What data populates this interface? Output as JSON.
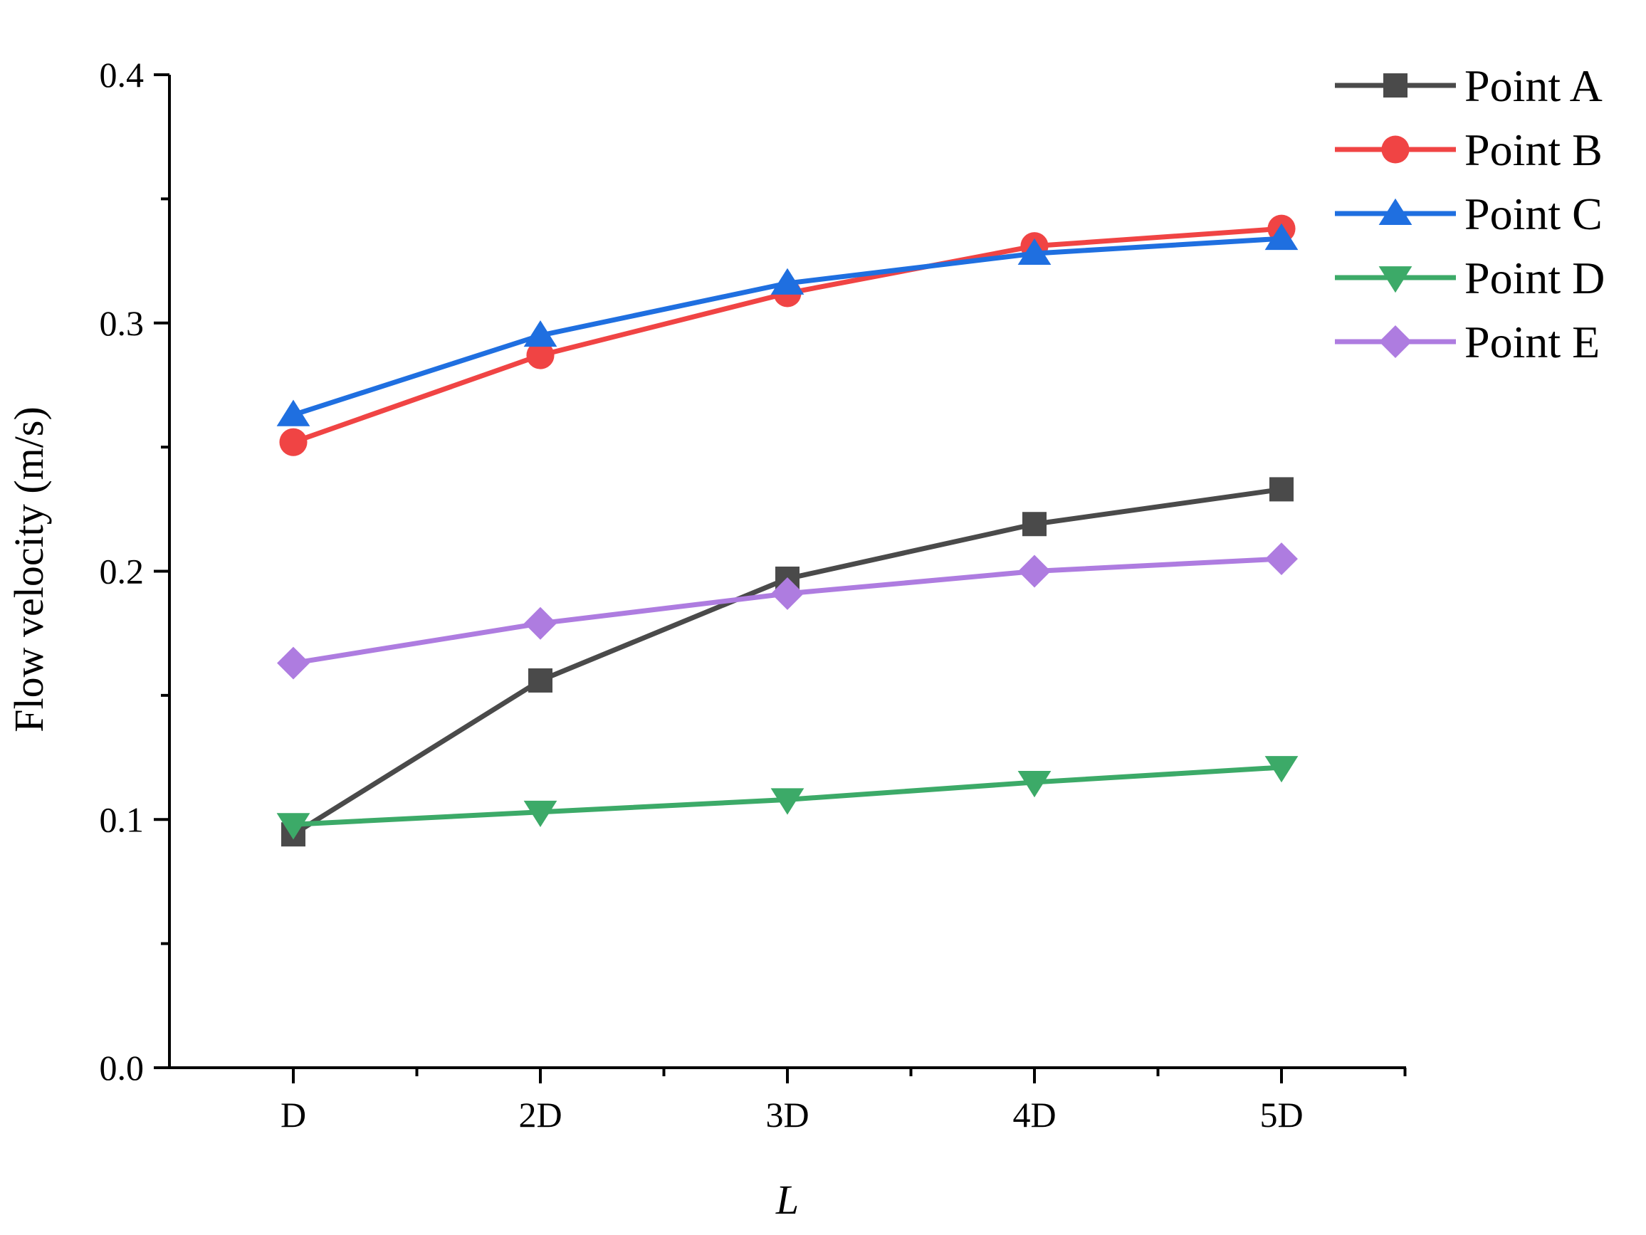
{
  "chart_data": {
    "type": "line",
    "xlabel": "L",
    "ylabel": "Flow velocity (m/s)",
    "categories": [
      "D",
      "2D",
      "3D",
      "4D",
      "5D"
    ],
    "ylim": [
      0.0,
      0.4
    ],
    "yticks": [
      "0.0",
      "0.1",
      "0.2",
      "0.3",
      "0.4"
    ],
    "grid": false,
    "legend_position": "top-right",
    "series": [
      {
        "name": "Point A",
        "color": "#4a4a4a",
        "marker": "square",
        "values": [
          0.094,
          0.156,
          0.197,
          0.219,
          0.233
        ]
      },
      {
        "name": "Point B",
        "color": "#f04444",
        "marker": "circle",
        "values": [
          0.252,
          0.287,
          0.312,
          0.331,
          0.338
        ]
      },
      {
        "name": "Point C",
        "color": "#1f6fe0",
        "marker": "triangle-up",
        "values": [
          0.263,
          0.295,
          0.316,
          0.328,
          0.334
        ]
      },
      {
        "name": "Point D",
        "color": "#3caa68",
        "marker": "triangle-down",
        "values": [
          0.098,
          0.103,
          0.108,
          0.115,
          0.121
        ]
      },
      {
        "name": "Point E",
        "color": "#ae7ce0",
        "marker": "diamond",
        "values": [
          0.163,
          0.179,
          0.191,
          0.2,
          0.205
        ]
      }
    ]
  }
}
